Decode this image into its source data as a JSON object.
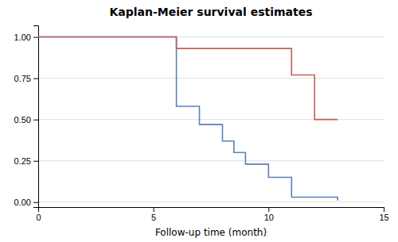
{
  "chart_data": {
    "type": "step",
    "title": "Kaplan-Meier survival estimates",
    "x_label": "Follow-up time (month)",
    "series": [
      {
        "color": "#5b7fbd",
        "x": [
          0,
          6,
          6,
          7,
          7,
          8,
          8,
          8.5,
          8.5,
          9,
          9,
          10,
          10,
          11,
          11,
          13,
          13
        ],
        "values": [
          1.0,
          1.0,
          0.58,
          0.58,
          0.47,
          0.47,
          0.37,
          0.37,
          0.3,
          0.3,
          0.23,
          0.23,
          0.15,
          0.15,
          0.03,
          0.03,
          0.01
        ]
      },
      {
        "color": "#c0605a",
        "x": [
          0,
          6,
          6,
          11,
          11,
          12,
          12,
          13
        ],
        "values": [
          1.0,
          1.0,
          0.93,
          0.93,
          0.77,
          0.77,
          0.5,
          0.5
        ]
      }
    ],
    "xlim": [
      0,
      15
    ],
    "ylim": [
      -0.03,
      1.07
    ],
    "xticks": [
      0,
      5,
      10,
      15
    ],
    "yticks": [
      {
        "value": 0.0,
        "label": "0.00"
      },
      {
        "value": 0.25,
        "label": "0.25"
      },
      {
        "value": 0.5,
        "label": "0.50"
      },
      {
        "value": 0.75,
        "label": "0.75"
      },
      {
        "value": 1.0,
        "label": "1.00"
      }
    ],
    "grid": true
  }
}
